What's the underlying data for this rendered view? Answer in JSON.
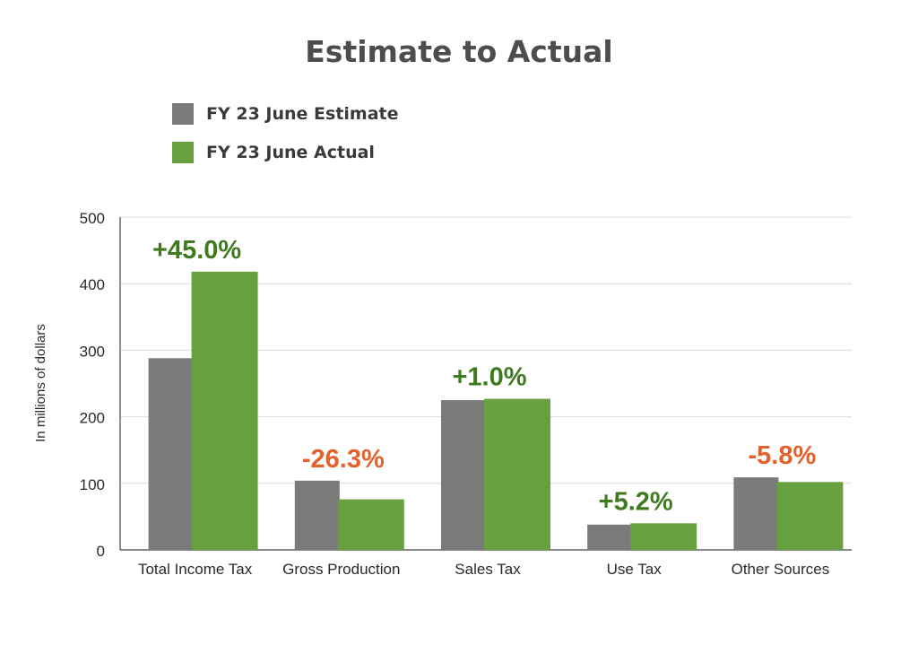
{
  "chart_data": {
    "type": "bar",
    "title": "Estimate to Actual",
    "xlabel": "",
    "ylabel": "In millions of dollars",
    "ylim": [
      0,
      500
    ],
    "yticks": [
      0,
      100,
      200,
      300,
      400,
      500
    ],
    "grid": true,
    "legend_position": "top-left",
    "categories": [
      "Total Income Tax",
      "Gross Production",
      "Sales Tax",
      "Use Tax",
      "Other Sources"
    ],
    "series": [
      {
        "name": "FY 23 June Estimate",
        "color": "#7a7a7a",
        "values": [
          288,
          104,
          225,
          38,
          109
        ]
      },
      {
        "name": "FY 23 June Actual",
        "color": "#67a13f",
        "values": [
          418,
          76,
          227,
          40,
          102
        ]
      }
    ],
    "annotations": [
      {
        "text": "+45.0%",
        "color": "#3f7a1f"
      },
      {
        "text": "-26.3%",
        "color": "#e2622c"
      },
      {
        "text": "+1.0%",
        "color": "#3f7a1f"
      },
      {
        "text": "+5.2%",
        "color": "#3f7a1f"
      },
      {
        "text": "-5.8%",
        "color": "#e2622c"
      }
    ]
  }
}
